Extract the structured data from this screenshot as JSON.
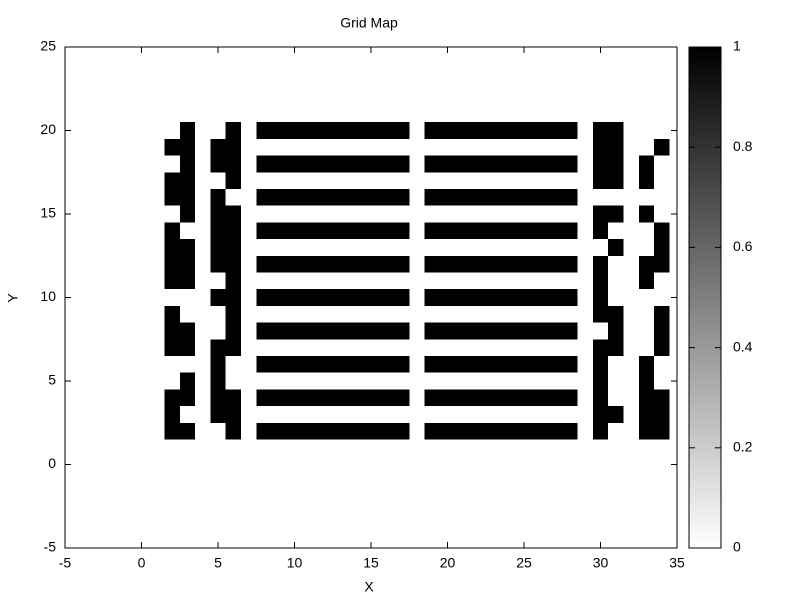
{
  "chart_data": {
    "type": "heatmap",
    "title": "Grid Map",
    "xlabel": "X",
    "ylabel": "Y",
    "x": [
      2,
      3,
      4,
      5,
      6,
      7,
      8,
      9,
      10,
      11,
      12,
      13,
      14,
      15,
      16,
      17,
      18,
      19,
      20,
      21,
      22,
      23,
      24,
      25,
      26,
      27,
      28,
      29,
      30,
      31,
      32,
      33,
      34
    ],
    "y": [
      2,
      3,
      4,
      5,
      6,
      7,
      8,
      9,
      10,
      11,
      12,
      13,
      14,
      15,
      16,
      17,
      18,
      19,
      20
    ],
    "z": [
      [
        1,
        1,
        0,
        0,
        1,
        0,
        1,
        1,
        1,
        1,
        1,
        1,
        1,
        1,
        1,
        1,
        0,
        1,
        1,
        1,
        1,
        1,
        1,
        1,
        1,
        1,
        1,
        0,
        1,
        0,
        0,
        1,
        1
      ],
      [
        1,
        0,
        0,
        1,
        1,
        0,
        0,
        0,
        0,
        0,
        0,
        0,
        0,
        0,
        0,
        0,
        0,
        0,
        0,
        0,
        0,
        0,
        0,
        0,
        0,
        0,
        0,
        0,
        1,
        1,
        0,
        1,
        1
      ],
      [
        1,
        1,
        0,
        1,
        1,
        0,
        1,
        1,
        1,
        1,
        1,
        1,
        1,
        1,
        1,
        1,
        0,
        1,
        1,
        1,
        1,
        1,
        1,
        1,
        1,
        1,
        1,
        0,
        1,
        0,
        0,
        1,
        1
      ],
      [
        0,
        1,
        0,
        1,
        0,
        0,
        0,
        0,
        0,
        0,
        0,
        0,
        0,
        0,
        0,
        0,
        0,
        0,
        0,
        0,
        0,
        0,
        0,
        0,
        0,
        0,
        0,
        0,
        1,
        0,
        0,
        1,
        0
      ],
      [
        0,
        0,
        0,
        1,
        0,
        0,
        1,
        1,
        1,
        1,
        1,
        1,
        1,
        1,
        1,
        1,
        0,
        1,
        1,
        1,
        1,
        1,
        1,
        1,
        1,
        1,
        1,
        0,
        1,
        0,
        0,
        1,
        0
      ],
      [
        1,
        1,
        0,
        1,
        1,
        0,
        0,
        0,
        0,
        0,
        0,
        0,
        0,
        0,
        0,
        0,
        0,
        0,
        0,
        0,
        0,
        0,
        0,
        0,
        0,
        0,
        0,
        0,
        1,
        1,
        0,
        0,
        1
      ],
      [
        1,
        1,
        0,
        0,
        1,
        0,
        1,
        1,
        1,
        1,
        1,
        1,
        1,
        1,
        1,
        1,
        0,
        1,
        1,
        1,
        1,
        1,
        1,
        1,
        1,
        1,
        1,
        0,
        0,
        1,
        0,
        0,
        1
      ],
      [
        1,
        0,
        0,
        0,
        1,
        0,
        0,
        0,
        0,
        0,
        0,
        0,
        0,
        0,
        0,
        0,
        0,
        0,
        0,
        0,
        0,
        0,
        0,
        0,
        0,
        0,
        0,
        0,
        1,
        1,
        0,
        0,
        1
      ],
      [
        0,
        0,
        0,
        1,
        1,
        0,
        1,
        1,
        1,
        1,
        1,
        1,
        1,
        1,
        1,
        1,
        0,
        1,
        1,
        1,
        1,
        1,
        1,
        1,
        1,
        1,
        1,
        0,
        1,
        0,
        0,
        0,
        0
      ],
      [
        1,
        1,
        0,
        0,
        1,
        0,
        0,
        0,
        0,
        0,
        0,
        0,
        0,
        0,
        0,
        0,
        0,
        0,
        0,
        0,
        0,
        0,
        0,
        0,
        0,
        0,
        0,
        0,
        1,
        0,
        0,
        1,
        0
      ],
      [
        1,
        1,
        0,
        1,
        1,
        0,
        1,
        1,
        1,
        1,
        1,
        1,
        1,
        1,
        1,
        1,
        0,
        1,
        1,
        1,
        1,
        1,
        1,
        1,
        1,
        1,
        1,
        0,
        1,
        0,
        0,
        1,
        1
      ],
      [
        1,
        1,
        0,
        1,
        1,
        0,
        0,
        0,
        0,
        0,
        0,
        0,
        0,
        0,
        0,
        0,
        0,
        0,
        0,
        0,
        0,
        0,
        0,
        0,
        0,
        0,
        0,
        0,
        0,
        1,
        0,
        0,
        1
      ],
      [
        1,
        0,
        0,
        1,
        1,
        0,
        1,
        1,
        1,
        1,
        1,
        1,
        1,
        1,
        1,
        1,
        0,
        1,
        1,
        1,
        1,
        1,
        1,
        1,
        1,
        1,
        1,
        0,
        1,
        0,
        0,
        0,
        1
      ],
      [
        0,
        1,
        0,
        1,
        1,
        0,
        0,
        0,
        0,
        0,
        0,
        0,
        0,
        0,
        0,
        0,
        0,
        0,
        0,
        0,
        0,
        0,
        0,
        0,
        0,
        0,
        0,
        0,
        1,
        1,
        0,
        1,
        0
      ],
      [
        1,
        1,
        0,
        1,
        0,
        0,
        1,
        1,
        1,
        1,
        1,
        1,
        1,
        1,
        1,
        1,
        0,
        1,
        1,
        1,
        1,
        1,
        1,
        1,
        1,
        1,
        1,
        0,
        0,
        0,
        0,
        0,
        0
      ],
      [
        1,
        1,
        0,
        0,
        1,
        0,
        0,
        0,
        0,
        0,
        0,
        0,
        0,
        0,
        0,
        0,
        0,
        0,
        0,
        0,
        0,
        0,
        0,
        0,
        0,
        0,
        0,
        0,
        1,
        1,
        0,
        1,
        0
      ],
      [
        0,
        1,
        0,
        1,
        1,
        0,
        1,
        1,
        1,
        1,
        1,
        1,
        1,
        1,
        1,
        1,
        0,
        1,
        1,
        1,
        1,
        1,
        1,
        1,
        1,
        1,
        1,
        0,
        1,
        1,
        0,
        1,
        0
      ],
      [
        1,
        1,
        0,
        1,
        1,
        0,
        0,
        0,
        0,
        0,
        0,
        0,
        0,
        0,
        0,
        0,
        0,
        0,
        0,
        0,
        0,
        0,
        0,
        0,
        0,
        0,
        0,
        0,
        1,
        1,
        0,
        0,
        1
      ],
      [
        0,
        1,
        0,
        0,
        1,
        0,
        1,
        1,
        1,
        1,
        1,
        1,
        1,
        1,
        1,
        1,
        0,
        1,
        1,
        1,
        1,
        1,
        1,
        1,
        1,
        1,
        1,
        0,
        1,
        1,
        0,
        0,
        0
      ]
    ],
    "xlim": [
      -5,
      35
    ],
    "xticks": [
      -5,
      0,
      5,
      10,
      15,
      20,
      25,
      30,
      35
    ],
    "ylim": [
      -5,
      25
    ],
    "yticks": [
      -5,
      0,
      5,
      10,
      15,
      20,
      25
    ],
    "zlim": [
      0,
      1
    ],
    "cbticks": [
      0,
      0.2,
      0.4,
      0.6,
      0.8,
      1
    ],
    "colormap": [
      "#ffffff",
      "#000000"
    ]
  }
}
